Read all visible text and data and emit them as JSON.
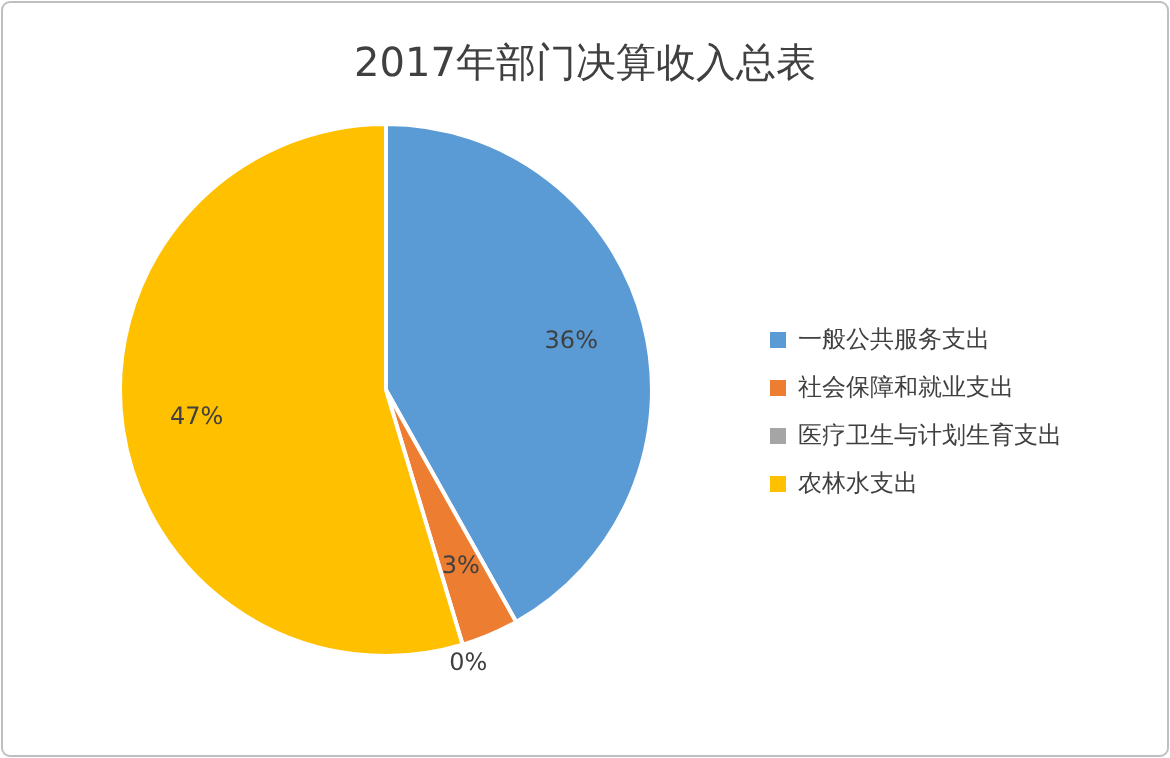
{
  "chart_data": {
    "type": "pie",
    "title": "2017年部门决算收入总表",
    "categories": [
      "一般公共服务支出",
      "社会保障和就业支出",
      "医疗卫生与计划生育支出",
      "农林水支出"
    ],
    "values": [
      36,
      3,
      0,
      47
    ],
    "colors": [
      "#5b9bd5",
      "#ed7d31",
      "#a5a5a5",
      "#ffc000"
    ],
    "value_labels": [
      "36%",
      "3%",
      "0%",
      "47%"
    ],
    "legend": "right"
  }
}
